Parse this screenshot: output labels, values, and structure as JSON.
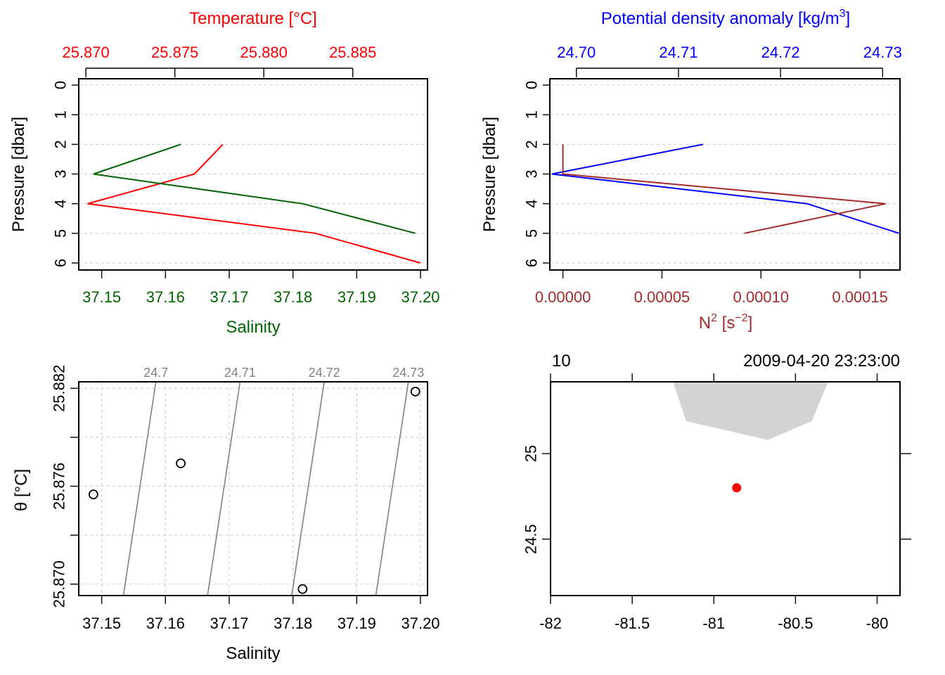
{
  "chart_data": [
    {
      "panel": "top-left",
      "type": "line",
      "xlabel_top": "Temperature [°C]",
      "xlabel_bottom": "Salinity",
      "ylabel": "Pressure [dbar]",
      "y_reversed": true,
      "ylim": [
        0,
        6
      ],
      "y_ticks": [
        "0",
        "1",
        "2",
        "3",
        "4",
        "5",
        "6"
      ],
      "top_axis": {
        "range": [
          25.8696,
          25.8892
        ],
        "ticks": [
          25.87,
          25.875,
          25.88,
          25.885
        ],
        "tick_labels": [
          "25.870",
          "25.875",
          "25.880",
          "25.885"
        ],
        "color": "#ff0000"
      },
      "bottom_axis": {
        "range": [
          37.1464,
          37.2011
        ],
        "ticks": [
          37.15,
          37.16,
          37.17,
          37.18,
          37.19,
          37.2
        ],
        "tick_labels": [
          "37.15",
          "37.16",
          "37.17",
          "37.18",
          "37.19",
          "37.20"
        ],
        "color": "#006400"
      },
      "grid": true,
      "series": [
        {
          "axis": "top",
          "color": "#ff0000",
          "x": [
            25.8777,
            25.8761,
            25.8701,
            25.8829,
            25.8888
          ],
          "y": [
            2,
            3,
            4,
            5,
            6
          ]
        },
        {
          "axis": "bottom",
          "color": "#006400",
          "x": [
            37.1624,
            37.1487,
            37.1815,
            37.1992
          ],
          "y": [
            2,
            3,
            4,
            5
          ]
        }
      ]
    },
    {
      "panel": "top-right",
      "type": "line",
      "xlabel_top": "Potential density anomaly [kg/m",
      "xlabel_top_sup": "3",
      "xlabel_top_end": "]",
      "xlabel_bottom_base": "N",
      "xlabel_bottom_sup": "2",
      "xlabel_bottom_mid": " [s",
      "xlabel_bottom_sup2": "−2",
      "xlabel_bottom_end": "]",
      "ylabel": "Pressure [dbar]",
      "y_reversed": true,
      "ylim": [
        0,
        6
      ],
      "y_ticks": [
        "0",
        "1",
        "2",
        "3",
        "4",
        "5",
        "6"
      ],
      "top_axis": {
        "range": [
          24.6974,
          24.7317
        ],
        "ticks": [
          24.7,
          24.71,
          24.72,
          24.73
        ],
        "tick_labels": [
          "24.70",
          "24.71",
          "24.72",
          "24.73"
        ],
        "color": "#0000ff"
      },
      "bottom_axis": {
        "range": [
          -6.6e-06,
          0.0001702
        ],
        "ticks": [
          0,
          5e-05,
          0.0001,
          0.00015
        ],
        "tick_labels": [
          "0.00000",
          "0.00005",
          "0.00010",
          "0.00015"
        ],
        "color": "#a52a2a"
      },
      "grid": true,
      "series": [
        {
          "axis": "top",
          "color": "#0000ff",
          "x": [
            24.7124,
            24.6976,
            24.7226,
            24.7316
          ],
          "y": [
            2,
            3,
            4,
            5
          ]
        },
        {
          "axis": "bottom",
          "color": "#a52a2a",
          "x": [
            0.0,
            0.0,
            0.000163,
            9.16e-05
          ],
          "y": [
            2,
            3,
            4,
            5
          ]
        }
      ]
    },
    {
      "panel": "bottom-left",
      "type": "scatter",
      "xlabel": "Salinity",
      "ylabel_symbol": "θ",
      "ylabel_rest": " [°C]",
      "xlim": [
        37.1464,
        37.2011
      ],
      "ylim": [
        25.8693,
        25.8824
      ],
      "x_ticks": [
        37.15,
        37.16,
        37.17,
        37.18,
        37.19,
        37.2
      ],
      "x_tick_labels": [
        "37.15",
        "37.16",
        "37.17",
        "37.18",
        "37.19",
        "37.20"
      ],
      "y_ticks": [
        25.87,
        25.873,
        25.876,
        25.879,
        25.882
      ],
      "y_tick_labels": [
        "25.870",
        "",
        "25.876",
        "",
        "25.882"
      ],
      "grid": true,
      "points": [
        {
          "x": 37.1487,
          "y": 25.8755
        },
        {
          "x": 37.1624,
          "y": 25.8774
        },
        {
          "x": 37.1815,
          "y": 25.8697
        },
        {
          "x": 37.1992,
          "y": 25.8818
        }
      ],
      "isopycnals": [
        {
          "label": "24.7",
          "x_bottom": 37.1534,
          "x_top": 37.1585
        },
        {
          "label": "24.71",
          "x_bottom": 37.1666,
          "x_top": 37.1717
        },
        {
          "label": "24.72",
          "x_bottom": 37.1798,
          "x_top": 37.1849
        },
        {
          "label": "24.73",
          "x_bottom": 37.193,
          "x_top": 37.1981
        }
      ],
      "isopycnal_color": "#808080"
    },
    {
      "panel": "bottom-right",
      "type": "map",
      "station": "10",
      "datetime": "2009-04-20 23:23:00",
      "xlim": [
        -82.0,
        -79.86
      ],
      "ylim": [
        24.17,
        25.42
      ],
      "x_ticks": [
        -82,
        -81.5,
        -81,
        -80.5,
        -80
      ],
      "x_tick_labels": [
        "-82",
        "-81.5",
        "-81",
        "-80.5",
        "-80"
      ],
      "y_ticks": [
        24.5,
        25
      ],
      "y_tick_labels": [
        "24.5",
        "25"
      ],
      "coastline": [
        {
          "lon": -81.25,
          "lat": 25.42
        },
        {
          "lon": -80.3,
          "lat": 25.42
        },
        {
          "lon": -80.4,
          "lat": 25.19
        },
        {
          "lon": -80.67,
          "lat": 25.08
        },
        {
          "lon": -81.17,
          "lat": 25.19
        }
      ],
      "land_color": "#d3d3d3",
      "station_point": {
        "lon": -80.86,
        "lat": 24.8
      },
      "station_color": "#ff0000"
    }
  ]
}
